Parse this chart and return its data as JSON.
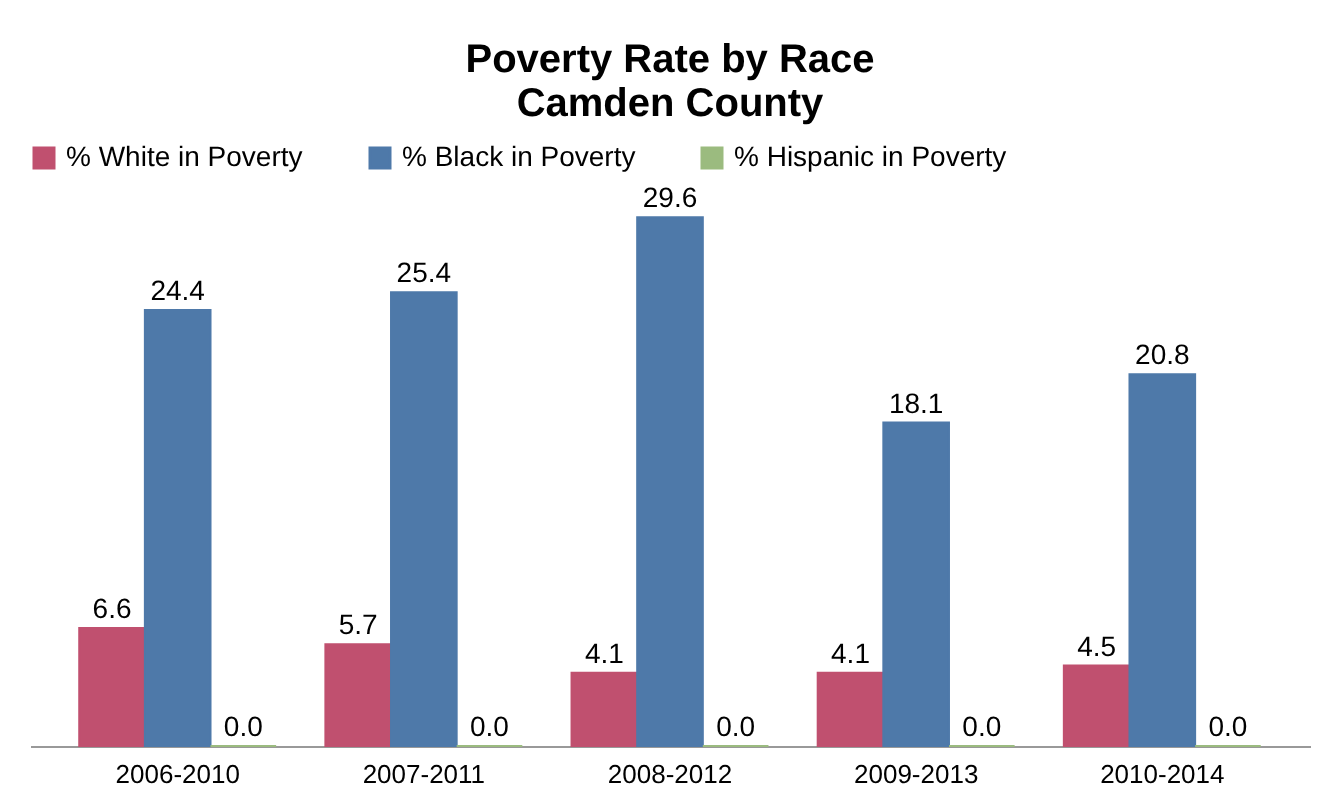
{
  "chart_data": {
    "type": "bar",
    "title": "Poverty Rate by Race\nCamden County",
    "categories": [
      "2006-2010",
      "2007-2011",
      "2008-2012",
      "2009-2013",
      "2010-2014"
    ],
    "series": [
      {
        "name": "% White in Poverty",
        "color": "#c0506f",
        "values": [
          6.6,
          5.7,
          4.1,
          4.1,
          4.5
        ],
        "value_labels": [
          "6.6",
          "5.7",
          "4.1",
          "4.1",
          "4.5"
        ]
      },
      {
        "name": "% Black in Poverty",
        "color": "#4e79a9",
        "values": [
          24.4,
          25.4,
          29.6,
          18.1,
          20.8
        ],
        "value_labels": [
          "24.4",
          "25.4",
          "29.6",
          "18.1",
          "20.8"
        ]
      },
      {
        "name": "% Hispanic in Poverty",
        "color": "#9bbb7f",
        "values": [
          0,
          0,
          0,
          0,
          0
        ],
        "value_labels": [
          "0.0",
          "0.0",
          "0.0",
          "0.0",
          "0.0"
        ]
      }
    ],
    "legend": "top",
    "grid": false
  }
}
